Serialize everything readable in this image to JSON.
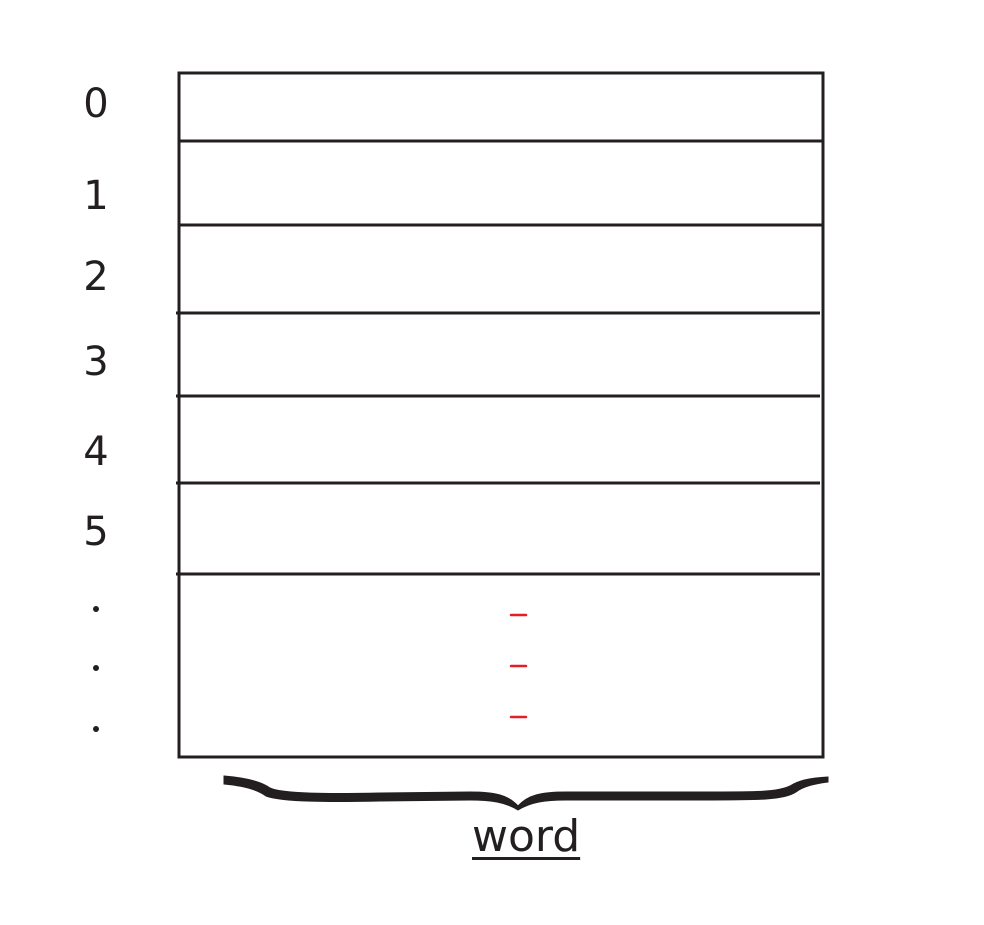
{
  "memory": {
    "row_labels": [
      "0",
      "1",
      "2",
      "3",
      "4",
      "5"
    ],
    "continuation_marks": [
      "·",
      "·",
      "·"
    ]
  },
  "brace": {
    "label": "word"
  },
  "colors": {
    "ink": "#231f20",
    "continuation_dash": "#e31e24"
  }
}
